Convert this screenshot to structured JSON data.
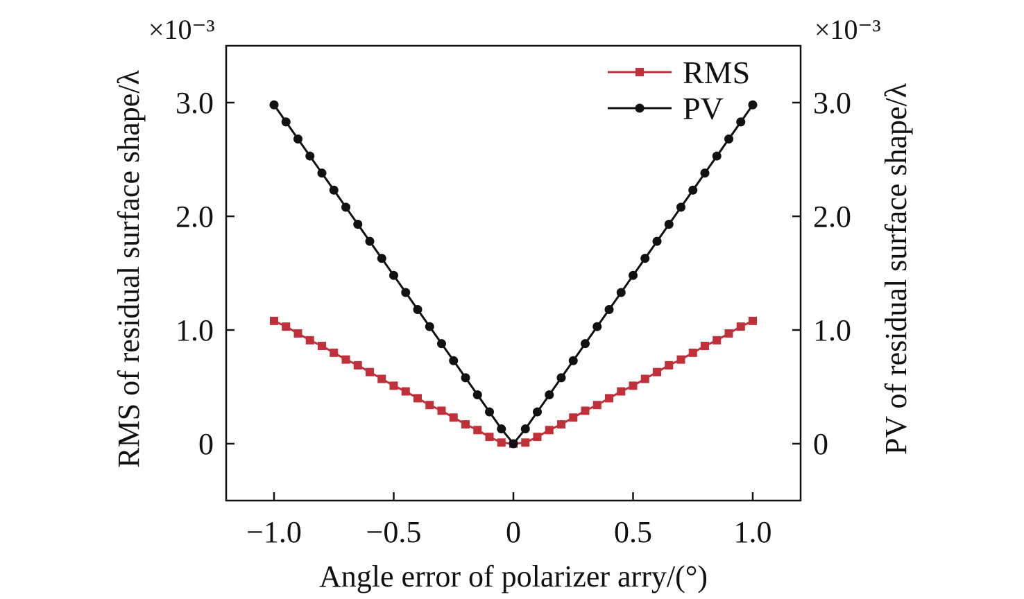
{
  "chart_data": {
    "type": "line",
    "xlabel": "Angle error of polarizer arry/(°)",
    "ylabel_left": "RMS of residual surface shape/λ",
    "ylabel_right": "PV of residual surface shape/λ",
    "y_multiplier_left": "×10⁻³",
    "y_multiplier_right": "×10⁻³",
    "xlim": [
      -1.2,
      1.2
    ],
    "ylim": [
      -0.5,
      3.5
    ],
    "x_ticks": [
      -1.0,
      -0.5,
      0,
      0.5,
      1.0
    ],
    "x_tick_labels": [
      "−1.0",
      "−0.5",
      "0",
      "0.5",
      "1.0"
    ],
    "y_ticks": [
      0,
      1.0,
      2.0,
      3.0
    ],
    "y_tick_labels": [
      "0",
      "1.0",
      "2.0",
      "3.0"
    ],
    "legend_position": "top-right",
    "grid": false,
    "x": [
      -1.0,
      -0.95,
      -0.9,
      -0.85,
      -0.8,
      -0.75,
      -0.7,
      -0.65,
      -0.6,
      -0.55,
      -0.5,
      -0.45,
      -0.4,
      -0.35,
      -0.3,
      -0.25,
      -0.2,
      -0.15,
      -0.1,
      -0.05,
      0,
      0.05,
      0.1,
      0.15,
      0.2,
      0.25,
      0.3,
      0.35,
      0.4,
      0.45,
      0.5,
      0.55,
      0.6,
      0.65,
      0.7,
      0.75,
      0.8,
      0.85,
      0.9,
      0.95,
      1.0
    ],
    "series": [
      {
        "name": "RMS",
        "color": "#c0303a",
        "marker": "square",
        "values": [
          1.08,
          1.03,
          0.97,
          0.91,
          0.86,
          0.8,
          0.74,
          0.69,
          0.63,
          0.57,
          0.51,
          0.46,
          0.4,
          0.34,
          0.29,
          0.23,
          0.17,
          0.12,
          0.06,
          0.01,
          0.0,
          0.01,
          0.06,
          0.12,
          0.17,
          0.23,
          0.29,
          0.34,
          0.4,
          0.46,
          0.51,
          0.57,
          0.63,
          0.69,
          0.74,
          0.8,
          0.86,
          0.91,
          0.97,
          1.03,
          1.08
        ]
      },
      {
        "name": "PV",
        "color": "#111111",
        "marker": "circle",
        "values": [
          2.98,
          2.83,
          2.68,
          2.53,
          2.38,
          2.23,
          2.08,
          1.93,
          1.78,
          1.63,
          1.48,
          1.33,
          1.18,
          1.03,
          0.88,
          0.73,
          0.58,
          0.43,
          0.28,
          0.13,
          0.0,
          0.13,
          0.28,
          0.43,
          0.58,
          0.73,
          0.88,
          1.03,
          1.18,
          1.33,
          1.48,
          1.63,
          1.78,
          1.93,
          2.08,
          2.23,
          2.38,
          2.53,
          2.68,
          2.83,
          2.98
        ]
      }
    ]
  }
}
